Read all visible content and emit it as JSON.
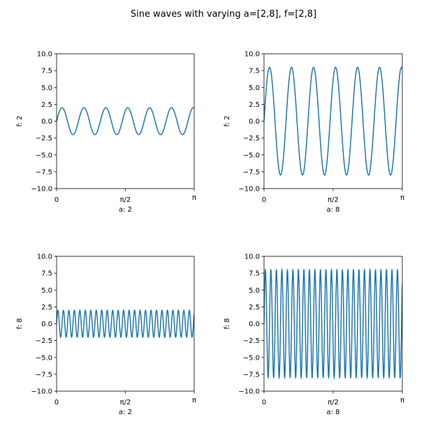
{
  "figure": {
    "title": "Sine waves with varying a=[2,8], f=[2,8]"
  },
  "style": {
    "line_color": "#1f77b4",
    "axis_color": "#000000",
    "background": "#ffffff"
  },
  "chart_data": [
    {
      "type": "line",
      "xlabel": "a: 2",
      "ylabel": "f: 2",
      "amplitude": 2,
      "frequency": 2,
      "xlim": [
        0,
        3.14159
      ],
      "ylim": [
        -10,
        10
      ],
      "xticks": [
        0,
        1.5708,
        3.14159
      ],
      "xtick_labels": [
        "0",
        "π/2",
        "π"
      ],
      "yticks": [
        -10,
        -7.5,
        -5,
        -2.5,
        0,
        2.5,
        5,
        7.5,
        10
      ],
      "ytick_labels": [
        "−10.0",
        "−7.5",
        "−5.0",
        "−2.5",
        "0.0",
        "2.5",
        "5.0",
        "7.5",
        "10.0"
      ],
      "grid": false
    },
    {
      "type": "line",
      "xlabel": "a: 8",
      "ylabel": "f: 2",
      "amplitude": 8,
      "frequency": 2,
      "xlim": [
        0,
        3.14159
      ],
      "ylim": [
        -10,
        10
      ],
      "xticks": [
        0,
        1.5708,
        3.14159
      ],
      "xtick_labels": [
        "0",
        "π/2",
        "π"
      ],
      "yticks": [
        -10,
        -7.5,
        -5,
        -2.5,
        0,
        2.5,
        5,
        7.5,
        10
      ],
      "ytick_labels": [
        "−10.0",
        "−7.5",
        "−5.0",
        "−2.5",
        "0.0",
        "2.5",
        "5.0",
        "7.5",
        "10.0"
      ],
      "grid": false
    },
    {
      "type": "line",
      "xlabel": "a: 2",
      "ylabel": "f: 8",
      "amplitude": 2,
      "frequency": 8,
      "xlim": [
        0,
        3.14159
      ],
      "ylim": [
        -10,
        10
      ],
      "xticks": [
        0,
        1.5708,
        3.14159
      ],
      "xtick_labels": [
        "0",
        "π/2",
        "π"
      ],
      "yticks": [
        -10,
        -7.5,
        -5,
        -2.5,
        0,
        2.5,
        5,
        7.5,
        10
      ],
      "ytick_labels": [
        "−10.0",
        "−7.5",
        "−5.0",
        "−2.5",
        "0.0",
        "2.5",
        "5.0",
        "7.5",
        "10.0"
      ],
      "grid": false
    },
    {
      "type": "line",
      "xlabel": "a: 8",
      "ylabel": "f: 8",
      "amplitude": 8,
      "frequency": 8,
      "xlim": [
        0,
        3.14159
      ],
      "ylim": [
        -10,
        10
      ],
      "xticks": [
        0,
        1.5708,
        3.14159
      ],
      "xtick_labels": [
        "0",
        "π/2",
        "π"
      ],
      "yticks": [
        -10,
        -7.5,
        -5,
        -2.5,
        0,
        2.5,
        5,
        7.5,
        10
      ],
      "ytick_labels": [
        "−10.0",
        "−7.5",
        "−5.0",
        "−2.5",
        "0.0",
        "2.5",
        "5.0",
        "7.5",
        "10.0"
      ],
      "grid": false
    }
  ]
}
